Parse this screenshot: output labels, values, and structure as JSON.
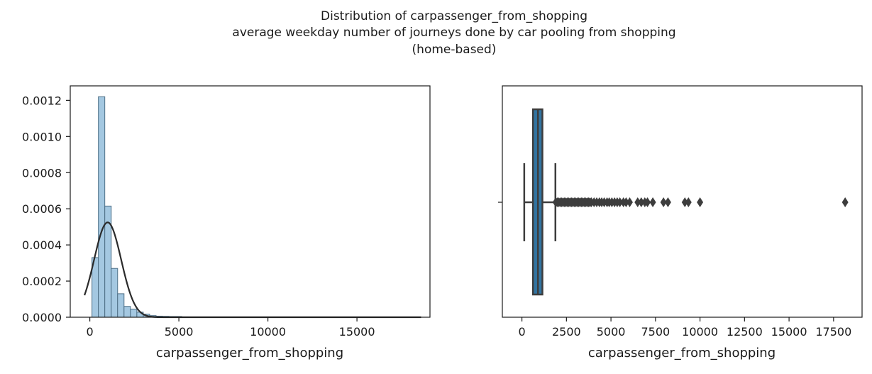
{
  "figure": {
    "title_lines": [
      "Distribution of carpassenger_from_shopping",
      "average weekday number of journeys done by car pooling from shopping",
      "(home-based)"
    ]
  },
  "chart_data": [
    {
      "type": "histogram",
      "xlabel": "carpassenger_from_shopping",
      "ylabel": "",
      "xlim": [
        -1100,
        19100
      ],
      "ylim": [
        0,
        0.00128
      ],
      "xticks": [
        0,
        5000,
        10000,
        15000
      ],
      "xtick_labels": [
        "0",
        "5000",
        "10000",
        "15000"
      ],
      "yticks": [
        0,
        0.0002,
        0.0004,
        0.0006,
        0.0008,
        0.001,
        0.0012
      ],
      "ytick_labels": [
        "0.0000",
        "0.0002",
        "0.0004",
        "0.0006",
        "0.0008",
        "0.0010",
        "0.0012"
      ],
      "bin_edges": [
        120,
        480,
        840,
        1200,
        1560,
        1920,
        2280,
        2640,
        3000,
        3360,
        3720,
        4080,
        4440,
        4800,
        5160,
        5520,
        5880,
        6240,
        6600,
        6960,
        7320,
        7680,
        8040,
        8400,
        8760,
        9120,
        9480,
        9840,
        10200
      ],
      "densities": [
        0.00033,
        0.00122,
        0.000615,
        0.00027,
        0.00013,
        6e-05,
        4.5e-05,
        2.8e-05,
        1.7e-05,
        9e-06,
        6e-06,
        5e-06,
        4e-06,
        4e-06,
        2e-06,
        1.5e-06,
        1.2e-06,
        1e-06,
        1e-06,
        8e-07,
        8e-07,
        6e-07,
        5e-07,
        4e-07,
        4e-07,
        4e-07,
        3e-07,
        3e-07
      ],
      "fit_curve": {
        "type": "normal",
        "mean": 1000,
        "std": 760,
        "x_range": [
          -300,
          18600
        ]
      },
      "color_bars": "#a4c8e1",
      "color_edges": "#4e6f86",
      "color_curve": "#2b2b2b"
    },
    {
      "type": "boxplot",
      "xlabel": "carpassenger_from_shopping",
      "xlim": [
        -1100,
        19100
      ],
      "xticks": [
        0,
        2500,
        5000,
        7500,
        10000,
        12500,
        15000,
        17500
      ],
      "xtick_labels": [
        "0",
        "2500",
        "5000",
        "7500",
        "10000",
        "12500",
        "15000",
        "17500"
      ],
      "whisker_low": 130,
      "q1": 620,
      "median": 900,
      "q3": 1150,
      "whisker_high": 1880,
      "outliers": [
        1900,
        1980,
        2060,
        2140,
        2220,
        2300,
        2380,
        2460,
        2540,
        2620,
        2700,
        2780,
        2860,
        2940,
        3020,
        3100,
        3180,
        3260,
        3340,
        3420,
        3500,
        3580,
        3660,
        3740,
        3820,
        3900,
        4050,
        4200,
        4350,
        4480,
        4620,
        4780,
        4900,
        5050,
        5200,
        5350,
        5500,
        5700,
        5850,
        6050,
        6500,
        6700,
        6900,
        7050,
        7350,
        7950,
        8200,
        9150,
        9350,
        10000,
        18150
      ],
      "color_box": "#3274a1",
      "color_lines": "#3d3d3d"
    }
  ]
}
